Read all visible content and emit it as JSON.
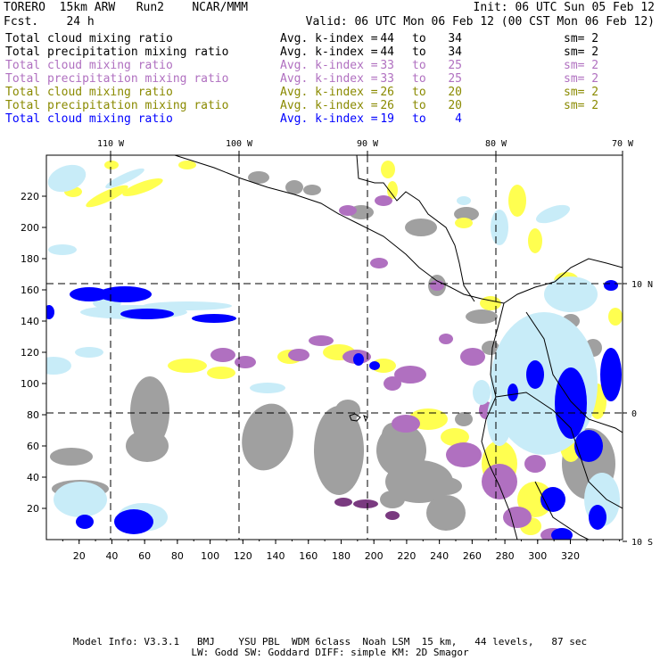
{
  "header": {
    "left_line1": "TORERO  15km ARW   Run2    NCAR/MMM",
    "left_line2": "Fcst.    24 h",
    "right_line1": "Init: 06 UTC Sun 05 Feb 12",
    "right_line2": "Valid: 06 UTC Mon 06 Feb 12 (00 CST Mon 06 Feb 12)"
  },
  "legend": [
    {
      "label": "Total cloud mixing ratio",
      "avg": "Avg. k-index =",
      "a": "44",
      "to": "to",
      "b": "34",
      "sm": "sm= 2",
      "color": "#000000"
    },
    {
      "label": "Total precipitation mixing ratio",
      "avg": "Avg. k-index =",
      "a": "44",
      "to": "to",
      "b": "34",
      "sm": "sm= 2",
      "color": "#000000"
    },
    {
      "label": "Total cloud mixing ratio",
      "avg": "Avg. k-index =",
      "a": "33",
      "to": "to",
      "b": "25",
      "sm": "sm= 2",
      "color": "#b070c0"
    },
    {
      "label": "Total precipitation mixing ratio",
      "avg": "Avg. k-index =",
      "a": "33",
      "to": "to",
      "b": "25",
      "sm": "sm= 2",
      "color": "#b070c0"
    },
    {
      "label": "Total cloud mixing ratio",
      "avg": "Avg. k-index =",
      "a": "26",
      "to": "to",
      "b": "20",
      "sm": "sm= 2",
      "color": "#8a8a00"
    },
    {
      "label": "Total precipitation mixing ratio",
      "avg": "Avg. k-index =",
      "a": "26",
      "to": "to",
      "b": "20",
      "sm": "sm= 2",
      "color": "#8a8a00"
    },
    {
      "label": "Total cloud mixing ratio",
      "avg": "Avg. k-index =",
      "a": "19",
      "to": "to",
      "b": "4",
      "sm": "",
      "color": "#0000ff"
    }
  ],
  "map": {
    "x_ticks": [
      "20",
      "40",
      "60",
      "80",
      "100",
      "120",
      "140",
      "160",
      "180",
      "200",
      "220",
      "240",
      "260",
      "280",
      "300",
      "320"
    ],
    "y_ticks": [
      "20",
      "40",
      "60",
      "80",
      "100",
      "120",
      "140",
      "160",
      "180",
      "200",
      "220"
    ],
    "lon_labels": [
      "110 W",
      "100 W",
      "90 W",
      "80 W",
      "70 W"
    ],
    "lat_labels": [
      "10 N",
      "0",
      "10 S"
    ],
    "colors": {
      "gray": "#a0a0a0",
      "purple": "#b070c0",
      "dark_purple": "#7a3a80",
      "yellow": "#ffff50",
      "light_blue": "#c8ecf8",
      "blue": "#0000ff"
    }
  },
  "footer": {
    "line1": "Model Info: V3.3.1   BMJ    YSU PBL  WDM 6class  Noah LSM  15 km,   44 levels,   87 sec",
    "line2": "LW: Godd SW: Goddard DIFF: simple KM: 2D Smagor"
  }
}
